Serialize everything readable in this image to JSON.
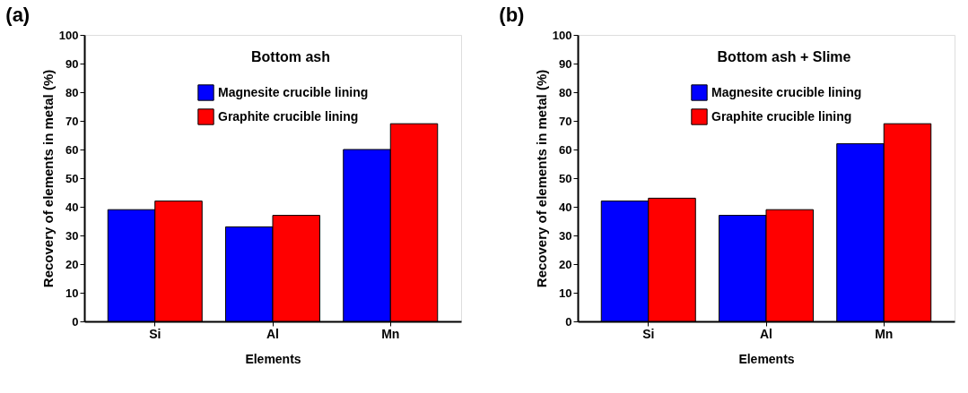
{
  "chart_data": [
    {
      "type": "bar",
      "title": "(a)",
      "annotations": [
        "Bottom ash"
      ],
      "xlabel": "Elements",
      "ylabel": "Recovery of elements in metal (%)",
      "categories": [
        "Si",
        "Al",
        "Mn"
      ],
      "ylim": [
        0,
        100
      ],
      "yticks": [
        0,
        10,
        20,
        30,
        40,
        50,
        60,
        70,
        80,
        90,
        100
      ],
      "legend": "top",
      "grid": false,
      "series": [
        {
          "name": "Magnesite crucible lining",
          "color": "#0000ff",
          "values": [
            39,
            33,
            60
          ]
        },
        {
          "name": "Graphite crucible lining",
          "color": "#ff0000",
          "values": [
            42,
            37,
            69
          ]
        }
      ]
    },
    {
      "type": "bar",
      "title": "(b)",
      "annotations": [
        "Bottom ash + Slime"
      ],
      "xlabel": "Elements",
      "ylabel": "Recovery of elements in metal (%)",
      "categories": [
        "Si",
        "Al",
        "Mn"
      ],
      "ylim": [
        0,
        100
      ],
      "yticks": [
        0,
        10,
        20,
        30,
        40,
        50,
        60,
        70,
        80,
        90,
        100
      ],
      "legend": "top",
      "grid": false,
      "series": [
        {
          "name": "Magnesite crucible lining",
          "color": "#0000ff",
          "values": [
            42,
            37,
            62
          ]
        },
        {
          "name": "Graphite crucible lining",
          "color": "#ff0000",
          "values": [
            43,
            39,
            69
          ]
        }
      ]
    }
  ]
}
